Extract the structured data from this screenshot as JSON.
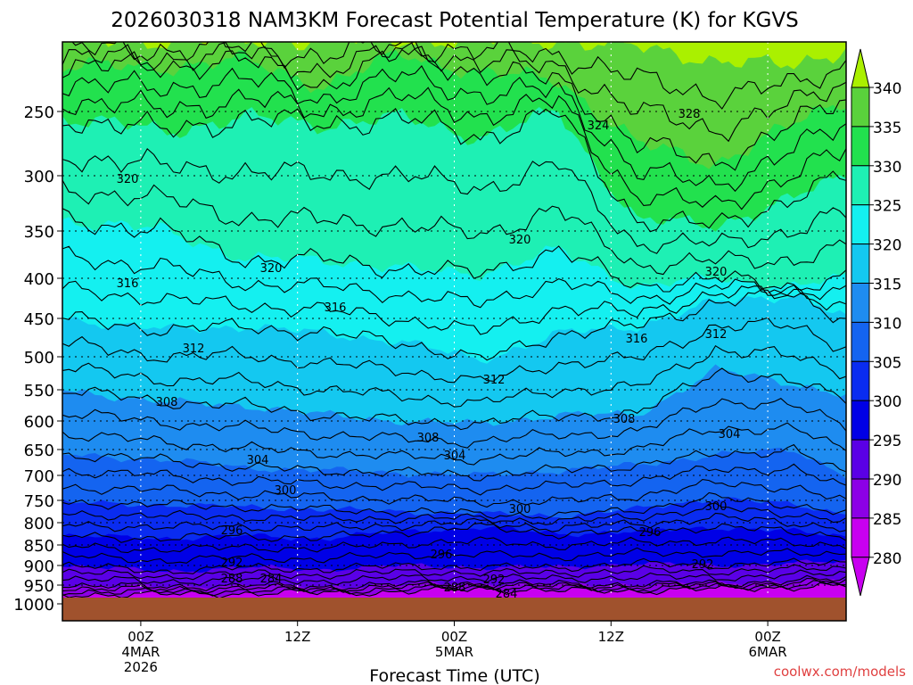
{
  "chart_data": {
    "type": "contour",
    "title": "2026030318 NAM3KM Forecast Potential Temperature (K) for KGVS",
    "xlabel": "Forecast Time (UTC)",
    "ylabel": "",
    "credit": "coolwx.com/models",
    "y_ticks": [
      "250",
      "300",
      "350",
      "400",
      "450",
      "500",
      "550",
      "600",
      "650",
      "700",
      "750",
      "800",
      "850",
      "900",
      "950",
      "1000"
    ],
    "y_values": [
      250,
      300,
      350,
      400,
      450,
      500,
      550,
      600,
      650,
      700,
      750,
      800,
      850,
      900,
      950,
      1000
    ],
    "ylim": [
      200,
      1000
    ],
    "x_ticks": [
      {
        "hour": 6,
        "line1": "00Z",
        "line2": "4MAR",
        "line3": "2026"
      },
      {
        "hour": 18,
        "line1": "12Z",
        "line2": "",
        "line3": ""
      },
      {
        "hour": 30,
        "line1": "00Z",
        "line2": "5MAR",
        "line3": ""
      },
      {
        "hour": 42,
        "line1": "12Z",
        "line2": "",
        "line3": ""
      },
      {
        "hour": 54,
        "line1": "00Z",
        "line2": "6MAR",
        "line3": ""
      }
    ],
    "xlim": [
      0,
      60
    ],
    "colorbar": {
      "levels": [
        "340",
        "335",
        "330",
        "325",
        "320",
        "315",
        "310",
        "305",
        "300",
        "295",
        "290",
        "285",
        "280"
      ],
      "colors": [
        "#aaf000",
        "#5ad23c",
        "#22e14e",
        "#1ef0b4",
        "#14f0f0",
        "#14c8f0",
        "#1e8cf0",
        "#1464f0",
        "#0a2cf0",
        "#0000e6",
        "#5a00e6",
        "#8c00e6",
        "#c800f0"
      ]
    },
    "contour_labels": [
      {
        "text": "320",
        "level": 320
      },
      {
        "text": "324",
        "level": 324
      },
      {
        "text": "328",
        "level": 328
      },
      {
        "text": "320",
        "level": 320
      },
      {
        "text": "320",
        "level": 320
      },
      {
        "text": "320",
        "level": 320
      },
      {
        "text": "316",
        "level": 316
      },
      {
        "text": "316",
        "level": 316
      },
      {
        "text": "316",
        "level": 316
      },
      {
        "text": "312",
        "level": 312
      },
      {
        "text": "312",
        "level": 312
      },
      {
        "text": "312",
        "level": 312
      },
      {
        "text": "308",
        "level": 308
      },
      {
        "text": "308",
        "level": 308
      },
      {
        "text": "308",
        "level": 308
      },
      {
        "text": "304",
        "level": 304
      },
      {
        "text": "304",
        "level": 304
      },
      {
        "text": "304",
        "level": 304
      },
      {
        "text": "300",
        "level": 300
      },
      {
        "text": "300",
        "level": 300
      },
      {
        "text": "300",
        "level": 300
      },
      {
        "text": "296",
        "level": 296
      },
      {
        "text": "296",
        "level": 296
      },
      {
        "text": "296",
        "level": 296
      },
      {
        "text": "292",
        "level": 292
      },
      {
        "text": "292",
        "level": 292
      },
      {
        "text": "292",
        "level": 292
      },
      {
        "text": "288",
        "level": 288
      },
      {
        "text": "288",
        "level": 288
      },
      {
        "text": "284",
        "level": 284
      },
      {
        "text": "284",
        "level": 284
      }
    ]
  }
}
